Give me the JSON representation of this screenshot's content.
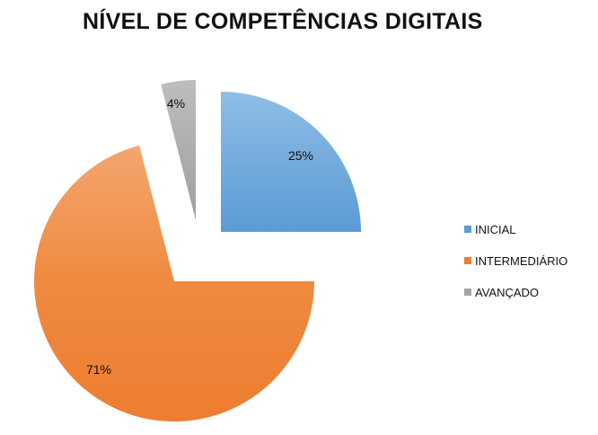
{
  "chart_data": {
    "type": "pie",
    "title": "NÍVEL DE COMPETÊNCIAS DIGITAIS",
    "categories": [
      "INICIAL",
      "INTERMEDIÁRIO",
      "AVANÇADO"
    ],
    "values": [
      25,
      71,
      4
    ],
    "data_labels": [
      "25%",
      "71%",
      "4%"
    ],
    "colors": [
      "#5b9bd5",
      "#ed7d31",
      "#a5a5a5"
    ],
    "exploded": true,
    "legend_position": "right"
  }
}
